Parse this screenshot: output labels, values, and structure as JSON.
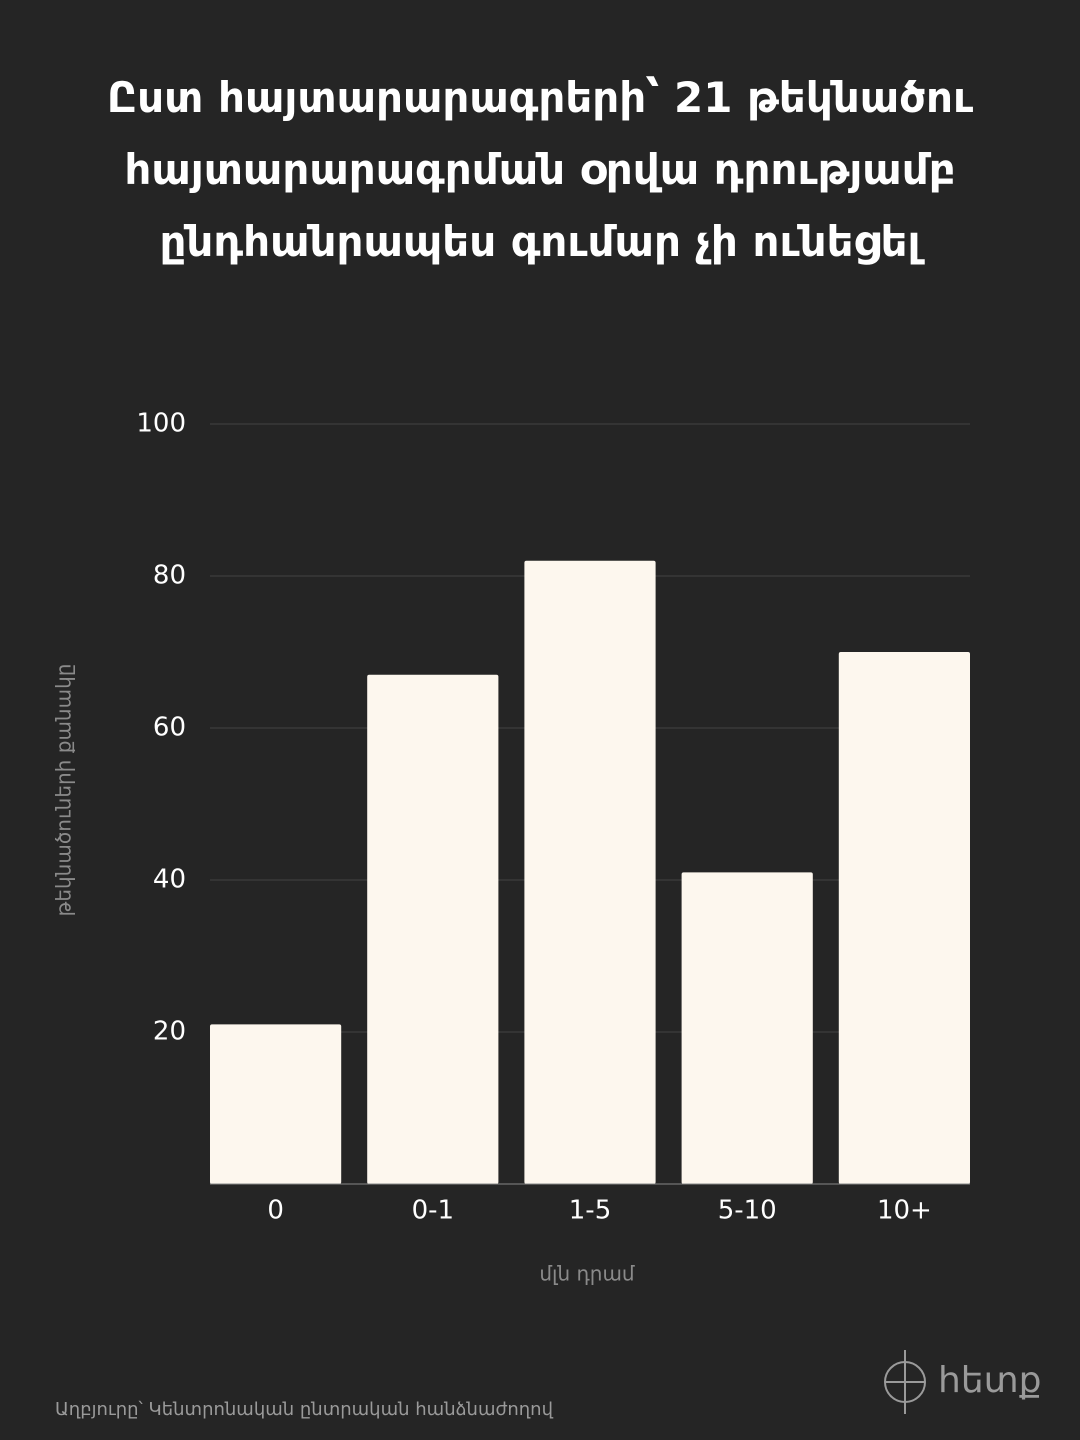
{
  "chart_data": {
    "type": "bar",
    "title": "Ըստ հայտարարագրերի՝ 21 թեկնածու հայտարարագրման օրվա դրությամբ ընդհանրապես գումար չի ունեցել",
    "categories": [
      "0",
      "0-1",
      "1-5",
      "5-10",
      "10+"
    ],
    "values": [
      21,
      67,
      82,
      41,
      70
    ],
    "color": "#fdf7ee",
    "ylim": [
      0,
      100
    ],
    "yticks": [
      20,
      40,
      60,
      80,
      100
    ],
    "grid": true,
    "x_label": "մլն դրամ",
    "y_label": "թեկնածուների քանակը"
  },
  "footer": {
    "source": "Աղբյուրը՝ Կենտրոնական ընտրական հանձնաժողով",
    "logo": "հետք"
  }
}
